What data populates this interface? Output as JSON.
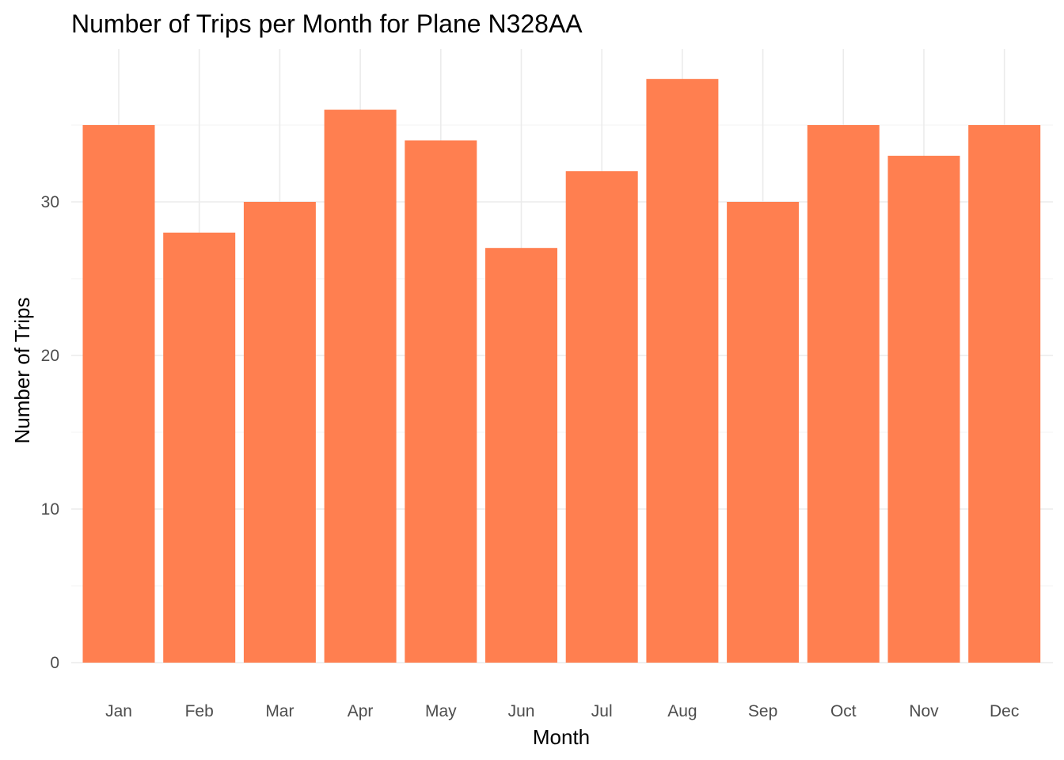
{
  "chart_data": {
    "type": "bar",
    "title": "Number of Trips per Month for Plane N328AA",
    "xlabel": "Month",
    "ylabel": "Number of Trips",
    "categories": [
      "Jan",
      "Feb",
      "Mar",
      "Apr",
      "May",
      "Jun",
      "Jul",
      "Aug",
      "Sep",
      "Oct",
      "Nov",
      "Dec"
    ],
    "values": [
      35,
      28,
      30,
      36,
      34,
      27,
      32,
      38,
      30,
      35,
      33,
      35
    ],
    "ylim": [
      0,
      40
    ],
    "yticks": [
      0,
      10,
      20,
      30
    ],
    "grid": true,
    "legend": "none",
    "bar_color": "#FF7F50"
  }
}
